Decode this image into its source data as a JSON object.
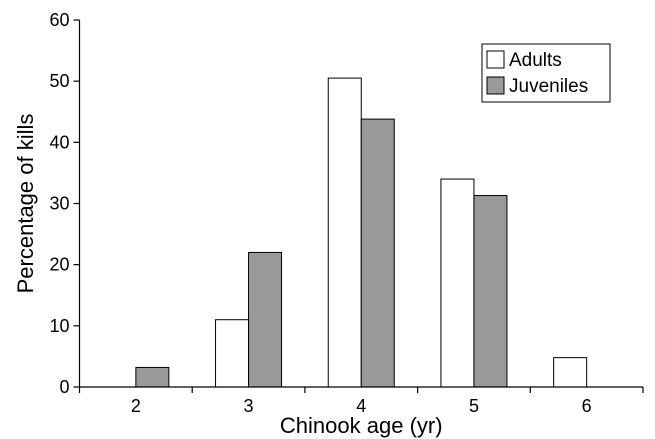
{
  "chart_data": {
    "type": "bar",
    "title": "",
    "xlabel": "Chinook age (yr)",
    "ylabel": "Percentage of kills",
    "categories": [
      "2",
      "3",
      "4",
      "5",
      "6"
    ],
    "series": [
      {
        "name": "Adults",
        "values": [
          0,
          11,
          50.5,
          34,
          4.8
        ],
        "color": "#ffffff"
      },
      {
        "name": "Juveniles",
        "values": [
          3.2,
          22,
          43.8,
          31.3,
          0
        ],
        "color": "#999999"
      }
    ],
    "ylim": [
      0,
      60
    ],
    "yticks": [
      0,
      10,
      20,
      30,
      40,
      50,
      60
    ],
    "grid": false,
    "legend": "top-right"
  }
}
